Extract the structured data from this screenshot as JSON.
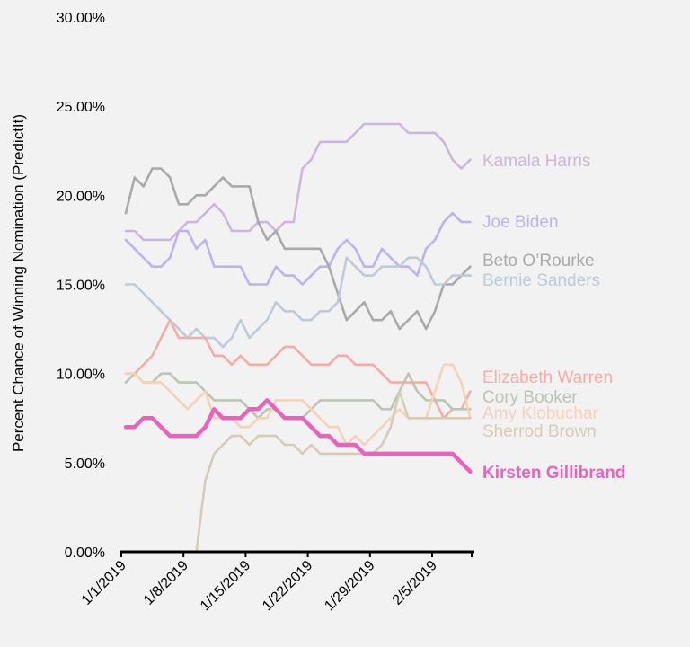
{
  "chart_data": {
    "type": "line",
    "title": "",
    "xlabel": "",
    "ylabel": "Percent Chance of Winning Nomination (PredictIt)",
    "ylim": [
      0,
      30
    ],
    "yticks": [
      "0.00%",
      "5.00%",
      "10.00%",
      "15.00%",
      "20.00%",
      "25.00%",
      "30.00%"
    ],
    "ytick_values": [
      0,
      5,
      10,
      15,
      20,
      25,
      30
    ],
    "xticks": [
      "1/1/2019",
      "1/8/2019",
      "1/15/2019",
      "1/22/2019",
      "1/29/2019",
      "2/5/2019"
    ],
    "xtick_days": [
      0,
      7,
      14,
      21,
      28,
      35
    ],
    "x_unit": "days since 1/1/2019",
    "x": [
      0,
      1,
      2,
      3,
      4,
      5,
      6,
      7,
      8,
      9,
      10,
      11,
      12,
      13,
      14,
      15,
      16,
      17,
      18,
      19,
      20,
      21,
      22,
      23,
      24,
      25,
      26,
      27,
      28,
      29,
      30,
      31,
      32,
      33,
      34,
      35,
      36,
      37,
      38,
      39
    ],
    "grid": false,
    "legend": "direct labels at right end of lines",
    "series": [
      {
        "name": "Kamala Harris",
        "color": "#cdb6dd",
        "bold": false,
        "values": [
          18,
          18,
          17.5,
          17.5,
          17.5,
          17.5,
          18,
          18.5,
          18.5,
          19,
          19.5,
          19,
          18,
          18,
          18,
          18.5,
          18.5,
          18,
          18.5,
          18.5,
          21.5,
          22,
          23,
          23,
          23,
          23,
          23.5,
          24,
          24,
          24,
          24,
          24,
          23.5,
          23.5,
          23.5,
          23.5,
          23,
          22,
          21.5,
          22
        ]
      },
      {
        "name": "Joe Biden",
        "color": "#bcb2f2",
        "bold": false,
        "values": [
          17.5,
          17,
          16.5,
          16,
          16,
          16.5,
          18,
          18,
          17,
          17.5,
          16,
          16,
          16,
          16,
          15,
          15,
          15,
          16,
          15.5,
          15.5,
          15,
          15.5,
          16,
          16,
          17,
          17.5,
          17,
          16,
          16,
          17,
          16.5,
          16,
          16,
          15.5,
          17,
          17.5,
          18.5,
          19,
          18.5,
          18.5
        ]
      },
      {
        "name": "Beto O’Rourke",
        "color": "#a9a9a9",
        "bold": false,
        "values": [
          19,
          21,
          20.5,
          21.5,
          21.5,
          21,
          19.5,
          19.5,
          20,
          20,
          20.5,
          21,
          20.5,
          20.5,
          20.5,
          18.5,
          17.5,
          18,
          17,
          17,
          17,
          17,
          17,
          16,
          14.5,
          13,
          13.5,
          14,
          13,
          13,
          13.5,
          12.5,
          13,
          13.5,
          12.5,
          13.5,
          15,
          15,
          15.5,
          16
        ]
      },
      {
        "name": "Bernie Sanders",
        "color": "#bccbd9",
        "bold": false,
        "values": [
          15,
          15,
          14.5,
          14,
          13.5,
          13,
          12.5,
          12,
          12.5,
          12,
          12,
          11.5,
          12,
          13,
          12,
          12.5,
          13,
          14,
          13.5,
          13.5,
          13,
          13,
          13.5,
          13.5,
          14,
          16.5,
          16,
          15.5,
          15.5,
          16,
          16,
          16,
          16.5,
          16.5,
          16,
          15,
          15,
          15.5,
          15.5,
          15.5
        ]
      },
      {
        "name": "Elizabeth Warren",
        "color": "#f5aca6",
        "bold": false,
        "values": [
          10,
          10,
          10.5,
          11,
          12,
          13,
          12,
          12,
          12,
          12,
          11,
          11,
          10.5,
          11,
          10.5,
          10.5,
          10.5,
          11,
          11.5,
          11.5,
          11,
          10.5,
          10.5,
          10.5,
          11,
          11,
          10.5,
          10.5,
          10.5,
          10,
          9.5,
          9.5,
          9.5,
          9.5,
          9.5,
          8.5,
          7.5,
          8,
          8,
          9
        ]
      },
      {
        "name": "Cory Booker",
        "color": "#bcc4b6",
        "bold": false,
        "values": [
          9.5,
          10,
          9.5,
          9.5,
          10,
          10,
          9.5,
          9.5,
          9.5,
          9,
          8.5,
          8.5,
          8.5,
          8.5,
          8,
          7.5,
          8,
          8,
          7.5,
          7.5,
          7.5,
          8,
          8.5,
          8.5,
          8.5,
          8.5,
          8.5,
          8.5,
          8.5,
          8,
          8,
          9,
          10,
          9,
          8.5,
          8.5,
          8.5,
          8,
          8,
          8
        ]
      },
      {
        "name": "Amy Klobuchar",
        "color": "#f5d1b8",
        "bold": false,
        "values": [
          10,
          10,
          9.5,
          9.5,
          9.5,
          9,
          8.5,
          8,
          8.5,
          9,
          7.5,
          7.5,
          7.5,
          7,
          7,
          7.5,
          7.5,
          8.5,
          8.5,
          8.5,
          8.5,
          8,
          7.5,
          7,
          7,
          6,
          6.5,
          6,
          6.5,
          7,
          7.5,
          8,
          7.5,
          7.5,
          7.5,
          9,
          10.5,
          10.5,
          9.5,
          7.5
        ]
      },
      {
        "name": "Sherrod Brown",
        "color": "#d6ccb6",
        "bold": false,
        "values": [
          0,
          0,
          0,
          0,
          0,
          0,
          0,
          0,
          0,
          4,
          5.5,
          6,
          6.5,
          6.5,
          6,
          6.5,
          6.5,
          6.5,
          6,
          6,
          5.5,
          6,
          5.5,
          5.5,
          5.5,
          5.5,
          5.5,
          5.5,
          5.5,
          6,
          7,
          9,
          7.5,
          7.5,
          7.5,
          7.5,
          7.5,
          7.5,
          7.5,
          7.5
        ]
      },
      {
        "name": "Kirsten Gillibrand",
        "color": "#ea62be",
        "bold": true,
        "values": [
          7,
          7,
          7.5,
          7.5,
          7,
          6.5,
          6.5,
          6.5,
          6.5,
          7,
          8,
          7.5,
          7.5,
          7.5,
          8,
          8,
          8.5,
          8,
          7.5,
          7.5,
          7.5,
          7,
          6.5,
          6.5,
          6,
          6,
          6,
          5.5,
          5.5,
          5.5,
          5.5,
          5.5,
          5.5,
          5.5,
          5.5,
          5.5,
          5.5,
          5.5,
          5,
          4.5
        ]
      }
    ]
  }
}
